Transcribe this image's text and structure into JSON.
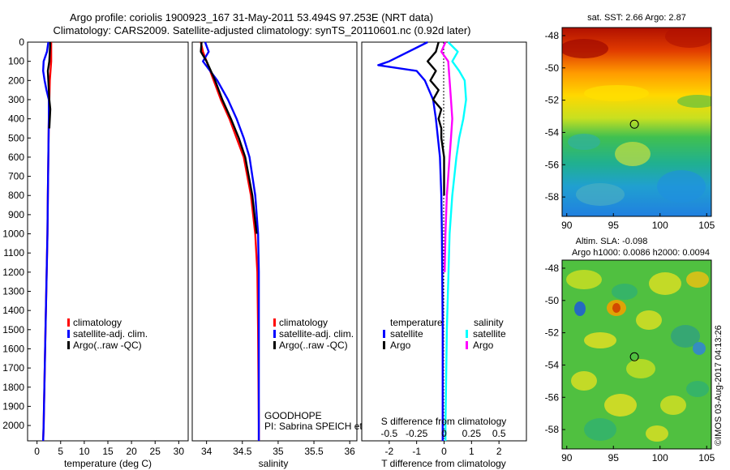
{
  "header": {
    "title_line1": "Argo profile: coriolis 1900923_167 31-May-2011 53.494S 97.253E (NRT data)",
    "title_line2": "Climatology: CARS2009. Satellite-adjusted climatology: synTS_20110601.nc (0.92d later)"
  },
  "colors": {
    "climatology": "#ff0000",
    "satellite": "#0000ff",
    "argo": "#000000",
    "salinity_satellite": "#00ffff",
    "salinity_argo": "#ff00ff"
  },
  "depth_ticks": [
    "0",
    "100",
    "200",
    "300",
    "400",
    "500",
    "600",
    "700",
    "800",
    "900",
    "1000",
    "1100",
    "1200",
    "1300",
    "1400",
    "1500",
    "1600",
    "1700",
    "1800",
    "1900",
    "2000"
  ],
  "chart_data": [
    {
      "type": "line",
      "name": "temperature-profile",
      "xlabel": "temperature (deg C)",
      "xlim": [
        -2,
        32
      ],
      "ylim": [
        2080,
        0
      ],
      "xticks": [
        "0",
        "5",
        "10",
        "15",
        "20",
        "25",
        "30"
      ],
      "legend": [
        "climatology",
        "satellite-adj. clim.",
        "Argo(..raw -QC)"
      ],
      "series": [
        {
          "name": "climatology",
          "color": "red",
          "y": [
            0,
            100,
            200,
            300,
            400,
            600,
            800,
            1000,
            1500,
            2000,
            2080
          ],
          "x": [
            3.0,
            3.0,
            2.7,
            2.6,
            2.5,
            2.4,
            2.3,
            2.2,
            1.8,
            1.4,
            1.3
          ]
        },
        {
          "name": "satellite-adj. clim.",
          "color": "blue",
          "y": [
            0,
            50,
            100,
            150,
            200,
            250,
            300,
            400,
            600,
            800,
            1000,
            1500,
            2000,
            2080
          ],
          "x": [
            2.4,
            2.1,
            1.4,
            1.3,
            1.6,
            2.0,
            2.5,
            2.5,
            2.4,
            2.3,
            2.2,
            1.8,
            1.4,
            1.3
          ]
        },
        {
          "name": "Argo(..raw -QC)",
          "color": "black",
          "y": [
            0,
            100,
            150,
            200,
            300,
            350,
            400,
            450
          ],
          "x": [
            2.8,
            2.6,
            2.3,
            2.4,
            2.6,
            2.8,
            2.7,
            2.6
          ]
        }
      ]
    },
    {
      "type": "line",
      "name": "salinity-profile",
      "xlabel": "salinity",
      "xlim": [
        33.8,
        36.1
      ],
      "ylim": [
        2080,
        0
      ],
      "xticks": [
        "34",
        "34.5",
        "35",
        "35.5",
        "36"
      ],
      "legend": [
        "climatology",
        "satellite-adj. clim.",
        "Argo(..raw -QC)"
      ],
      "annotations": [
        "GOODHOPE",
        "PI: Sabrina SPEICH et Michel ARHAN"
      ],
      "series": [
        {
          "name": "climatology",
          "color": "red",
          "y": [
            0,
            50,
            100,
            200,
            300,
            400,
            500,
            600,
            800,
            1000,
            1200,
            1500,
            2000,
            2080
          ],
          "x": [
            33.92,
            33.95,
            34.0,
            34.1,
            34.2,
            34.32,
            34.42,
            34.52,
            34.62,
            34.68,
            34.71,
            34.72,
            34.73,
            34.73
          ]
        },
        {
          "name": "satellite-adj. clim.",
          "color": "blue",
          "y": [
            0,
            50,
            100,
            150,
            200,
            300,
            400,
            500,
            600,
            800,
            1000,
            1200,
            1500,
            2000,
            2080
          ],
          "x": [
            33.98,
            34.03,
            33.95,
            34.05,
            34.15,
            34.3,
            34.42,
            34.52,
            34.6,
            34.68,
            34.72,
            34.73,
            34.73,
            34.73,
            34.73
          ]
        },
        {
          "name": "Argo(..raw -QC)",
          "color": "black",
          "y": [
            0,
            50,
            100,
            200,
            300,
            400,
            500,
            600,
            800,
            1000
          ],
          "x": [
            33.93,
            33.92,
            34.0,
            34.12,
            34.22,
            34.34,
            34.45,
            34.54,
            34.64,
            34.7
          ]
        }
      ]
    },
    {
      "type": "line",
      "name": "difference-profile",
      "xlabel": "T difference from climatology",
      "xlabel_top": "S difference from climatology",
      "xlim": [
        -3,
        3
      ],
      "ylim": [
        2080,
        0
      ],
      "xticks": [
        "-2",
        "-1",
        "0",
        "1",
        "2"
      ],
      "xticks_top": [
        "-0.5",
        "-0.25",
        "0",
        "0.25",
        "0.5"
      ],
      "legend_headers": [
        "temperature",
        "salinity"
      ],
      "legend": [
        "satellite",
        "Argo",
        "satellite",
        "Argo"
      ],
      "series": [
        {
          "name": "satellite",
          "color": "blue",
          "y": [
            0,
            100,
            120,
            150,
            200,
            300,
            400,
            600,
            800,
            1000,
            1500,
            2000,
            2080
          ],
          "x": [
            -0.6,
            -2.0,
            -2.4,
            -1.0,
            -0.7,
            -0.4,
            -0.3,
            -0.15,
            -0.1,
            -0.08,
            -0.05,
            -0.05,
            -0.05
          ]
        },
        {
          "name": "Argo",
          "color": "black",
          "y": [
            0,
            50,
            100,
            150,
            200,
            250,
            300,
            350,
            400,
            450,
            500,
            600,
            800
          ],
          "x": [
            -0.2,
            -0.3,
            -0.6,
            -0.3,
            -0.5,
            -0.2,
            -0.4,
            -0.1,
            -0.2,
            -0.1,
            -0.1,
            0,
            0
          ]
        },
        {
          "name": "satellite",
          "color": "cyan",
          "y": [
            0,
            50,
            100,
            150,
            200,
            300,
            400,
            500,
            600,
            800,
            1000,
            1500,
            2000,
            2080
          ],
          "x": [
            0.15,
            0.5,
            0.3,
            0.55,
            0.75,
            0.8,
            0.7,
            0.55,
            0.45,
            0.3,
            0.2,
            0.1,
            0.05,
            0.05
          ]
        },
        {
          "name": "Argo",
          "color": "magenta",
          "y": [
            0,
            50,
            100,
            200,
            300,
            400,
            500,
            600,
            700,
            800,
            1000,
            1200
          ],
          "x": [
            0.05,
            -0.1,
            0.15,
            0.2,
            0.25,
            0.3,
            0.25,
            0.2,
            0.15,
            0.1,
            0.05,
            0.02
          ]
        }
      ]
    },
    {
      "type": "heatmap",
      "name": "sst-map",
      "title": "sat. SST: 2.66 Argo: 2.87",
      "xlim": [
        89.5,
        105.5
      ],
      "ylim": [
        -59.2,
        -47.5
      ],
      "xticks": [
        "90",
        "95",
        "100",
        "105"
      ],
      "yticks": [
        "-48",
        "-50",
        "-52",
        "-54",
        "-56",
        "-58"
      ],
      "marker": {
        "lon": 97.25,
        "lat": -53.49
      }
    },
    {
      "type": "heatmap",
      "name": "sla-map",
      "title": "Altim. SLA: -0.098",
      "subtitle": "Argo h1000: 0.0086 h2000: 0.0094",
      "xlim": [
        89.5,
        105.5
      ],
      "ylim": [
        -59.2,
        -47.5
      ],
      "xticks": [
        "90",
        "95",
        "100",
        "105"
      ],
      "yticks": [
        "-48",
        "-50",
        "-52",
        "-54",
        "-56",
        "-58"
      ],
      "marker": {
        "lon": 97.25,
        "lat": -53.49
      }
    }
  ],
  "footer": {
    "credit": "©IMOS 03-Aug-2017 04:13:26"
  }
}
